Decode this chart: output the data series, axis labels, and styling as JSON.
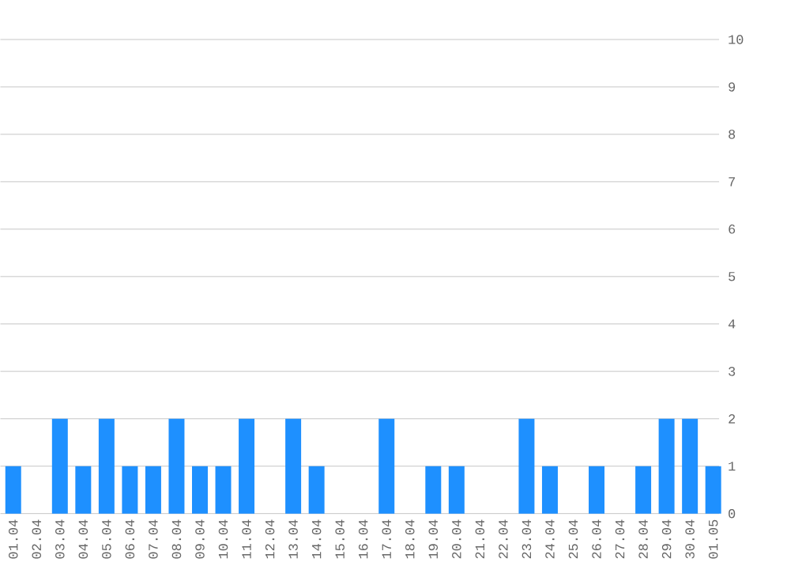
{
  "chart_data": {
    "type": "bar",
    "categories": [
      "01.04",
      "02.04",
      "03.04",
      "04.04",
      "05.04",
      "06.04",
      "07.04",
      "08.04",
      "09.04",
      "10.04",
      "11.04",
      "12.04",
      "13.04",
      "14.04",
      "15.04",
      "16.04",
      "17.04",
      "18.04",
      "19.04",
      "20.04",
      "21.04",
      "22.04",
      "23.04",
      "24.04",
      "25.04",
      "26.04",
      "27.04",
      "28.04",
      "29.04",
      "30.04",
      "01.05"
    ],
    "values": [
      1,
      0,
      2,
      1,
      2,
      1,
      1,
      2,
      1,
      1,
      2,
      0,
      2,
      1,
      0,
      0,
      2,
      0,
      1,
      1,
      0,
      0,
      2,
      1,
      0,
      1,
      0,
      1,
      2,
      2,
      1
    ],
    "color": "#1e90ff",
    "ylim": [
      0,
      10
    ],
    "yticks": [
      0,
      1,
      2,
      3,
      4,
      5,
      6,
      7,
      8,
      9,
      10
    ],
    "grid": "y"
  }
}
